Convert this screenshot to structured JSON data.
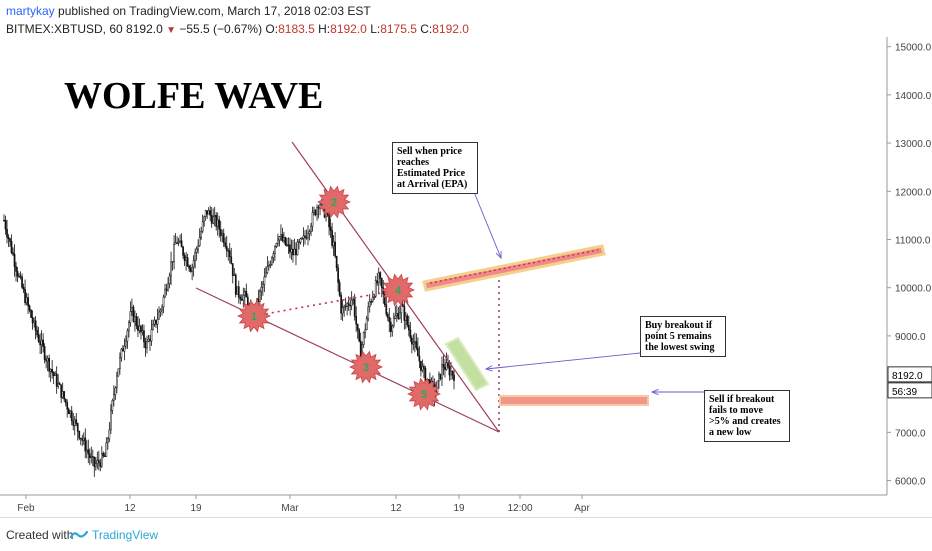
{
  "header": {
    "author": "martykay",
    "published": " published on TradingView.com, March 17, 2018 02:03 EST",
    "symbol": "BITMEX:XBTUSD, 60",
    "last": "8192.0",
    "change": "−55.5 (−0.67%)",
    "o_label": "O:",
    "o_val": "8183.5",
    "h_label": "H:",
    "h_val": "8192.0",
    "l_label": "L:",
    "l_val": "8175.5",
    "c_label": "C:",
    "c_val": "8192.0"
  },
  "annotations": {
    "title": "WOLFE WAVE",
    "note_sell_epa": "Sell when price reaches Estimated Price at Arrival (EPA)",
    "note_buy": "Buy breakout if point 5 remains the lowest swing",
    "note_sell_breakout": "Sell if breakout fails to move >5% and creates a new low"
  },
  "footer": {
    "created_with": "Created with",
    "brand": "TradingView"
  },
  "colors": {
    "wave_line": "#a0405a",
    "dotted": "#c0304a",
    "marker": "#e06a6a",
    "marker_num": "#2fa84f",
    "epa_band": "#f08a8a",
    "epa_band_edge": "#f4d08a",
    "buy_zone": "#c4e0a0",
    "sell_band": "#f0968a"
  },
  "chart_data": {
    "type": "candlestick",
    "symbol": "BITMEX:XBTUSD",
    "interval": "60",
    "ylim": [
      5700,
      15200
    ],
    "y_ticks": [
      "6000.0",
      "7000.0",
      "8000.0",
      "9000.0",
      "10000.0",
      "11000.0",
      "12000.0",
      "13000.0",
      "14000.0",
      "15000.0"
    ],
    "x_ticks": [
      "Feb",
      "12",
      "19",
      "Mar",
      "12",
      "19",
      "12:00",
      "Apr"
    ],
    "last_price_label": "8192.0",
    "countdown_label": "56:39",
    "series_waypoints": [
      [
        0,
        11400
      ],
      [
        0.04,
        10200
      ],
      [
        0.08,
        9200
      ],
      [
        0.12,
        8400
      ],
      [
        0.16,
        7700
      ],
      [
        0.2,
        7000
      ],
      [
        0.24,
        6300
      ],
      [
        0.27,
        6500
      ],
      [
        0.3,
        8200
      ],
      [
        0.34,
        9500
      ],
      [
        0.38,
        8800
      ],
      [
        0.42,
        9600
      ],
      [
        0.46,
        11000
      ],
      [
        0.5,
        10400
      ],
      [
        0.54,
        11600
      ],
      [
        0.57,
        11300
      ],
      [
        0.6,
        10800
      ],
      [
        0.62,
        9900
      ],
      [
        0.645,
        9800
      ],
      [
        0.66,
        9300
      ],
      [
        0.7,
        10300
      ],
      [
        0.73,
        11100
      ],
      [
        0.77,
        10700
      ],
      [
        0.8,
        11000
      ],
      [
        0.84,
        11800
      ],
      [
        0.86,
        11500
      ],
      [
        0.88,
        10800
      ],
      [
        0.9,
        9500
      ],
      [
        0.93,
        9800
      ],
      [
        0.95,
        8600
      ],
      [
        0.975,
        9700
      ],
      [
        1.0,
        10200
      ],
      [
        1.03,
        9200
      ],
      [
        1.06,
        9600
      ],
      [
        1.09,
        8900
      ],
      [
        1.12,
        8200
      ],
      [
        1.15,
        7800
      ],
      [
        1.17,
        8400
      ],
      [
        1.2,
        8200
      ]
    ],
    "wolfe_points": [
      {
        "label": "1",
        "t": "late Feb",
        "price": 9300
      },
      {
        "label": "2",
        "t": "early Mar",
        "price": 11700
      },
      {
        "label": "3",
        "t": "mid Mar",
        "price": 8300
      },
      {
        "label": "4",
        "t": "mid Mar",
        "price": 9800
      },
      {
        "label": "5",
        "t": "mid Mar",
        "price": 7700
      }
    ]
  }
}
